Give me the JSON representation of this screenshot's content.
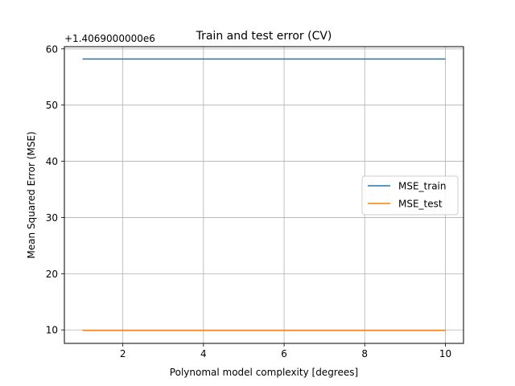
{
  "chart_data": {
    "type": "line",
    "title": "Train and test error (CV)",
    "xlabel": "Polynomal model complexity [degrees]",
    "ylabel": "Mean Squared Error (MSE)",
    "y_offset_label": "+1.4069000000e6",
    "xlim": [
      0.55,
      10.45
    ],
    "ylim": [
      7.6,
      60.4
    ],
    "x_ticks": [
      2,
      4,
      6,
      8,
      10
    ],
    "y_ticks": [
      10,
      20,
      30,
      40,
      50,
      60
    ],
    "grid": true,
    "legend_position": "center-right",
    "x": [
      1,
      2,
      3,
      4,
      5,
      6,
      7,
      8,
      9,
      10
    ],
    "series": [
      {
        "name": "MSE_train",
        "color": "#1f77b4",
        "values": [
          58.2,
          58.2,
          58.2,
          58.2,
          58.2,
          58.2,
          58.2,
          58.2,
          58.2,
          58.2
        ]
      },
      {
        "name": "MSE_test",
        "color": "#ff7f0e",
        "values": [
          9.9,
          9.9,
          9.9,
          9.9,
          9.9,
          9.9,
          9.9,
          9.9,
          9.9,
          9.9
        ]
      }
    ]
  }
}
